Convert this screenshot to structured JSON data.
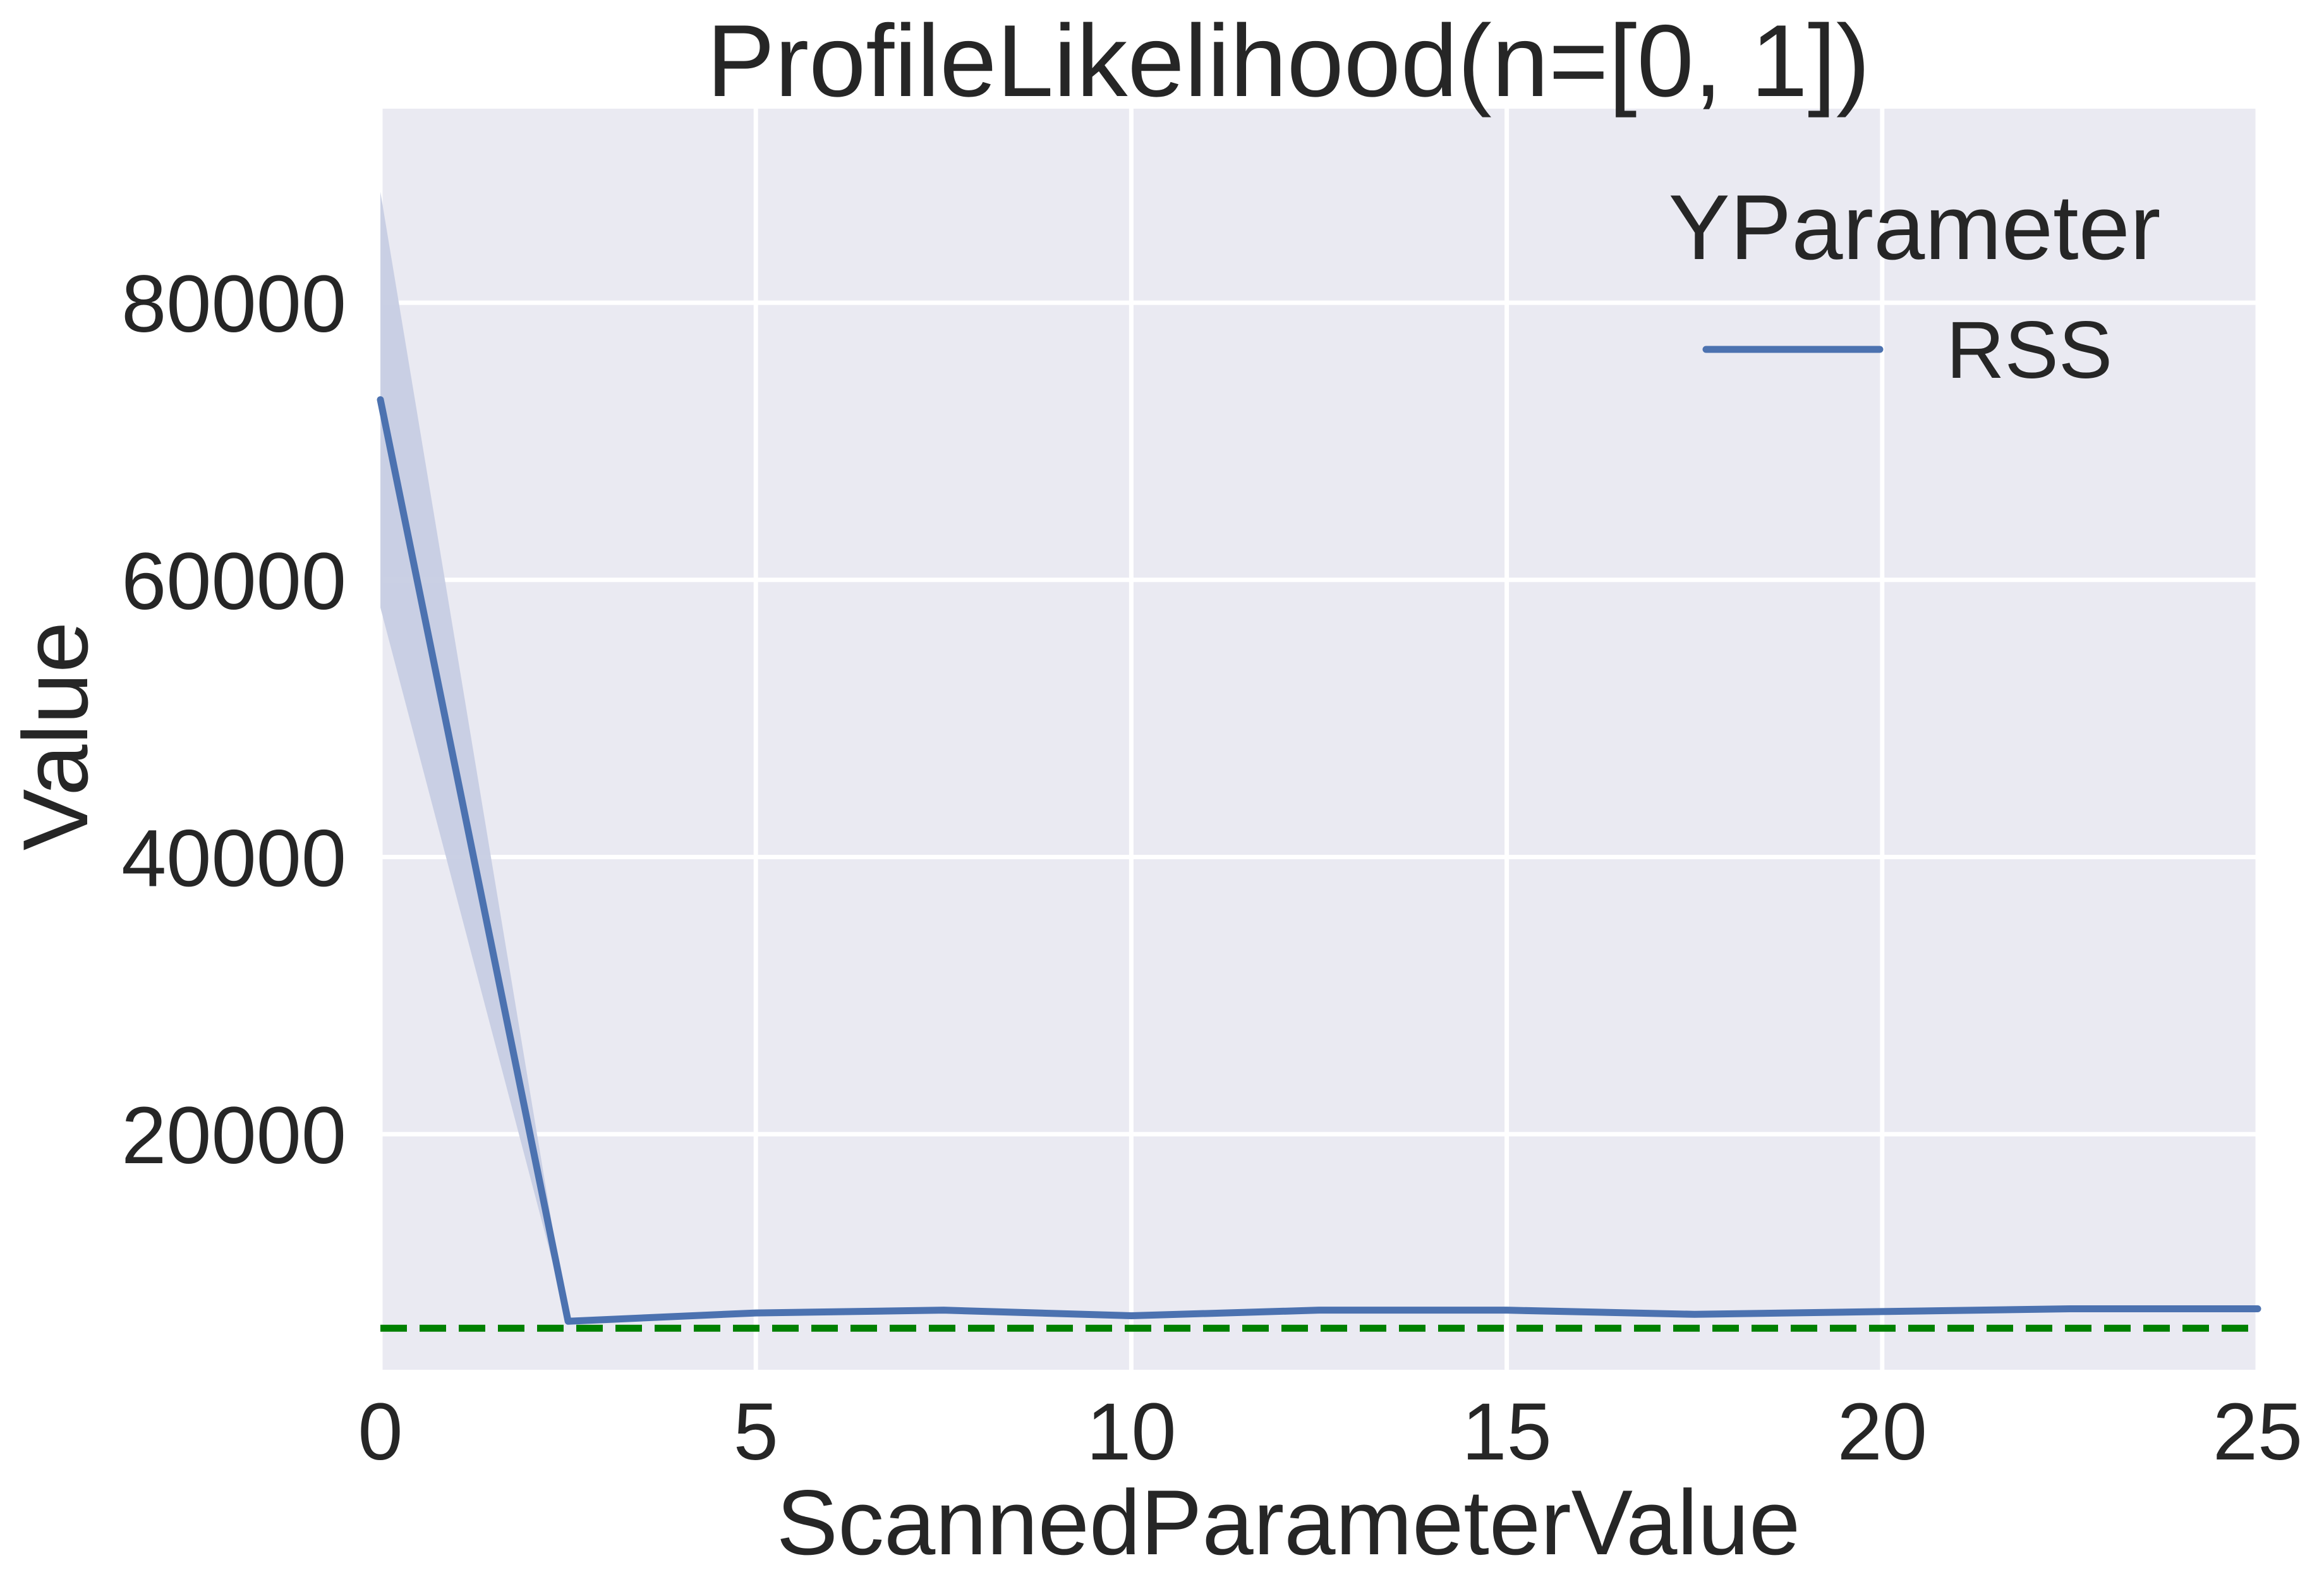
{
  "chart_data": {
    "type": "line",
    "title": "ProfileLikelihood(n=[0, 1])",
    "xlabel": "ScannedParameterValue",
    "ylabel": "Value",
    "xlim": [
      0,
      25
    ],
    "ylim": [
      3000,
      94000
    ],
    "x_ticks": [
      0,
      5,
      10,
      15,
      20,
      25
    ],
    "x_tick_labels": [
      "0",
      "5",
      "10",
      "15",
      "20",
      "25"
    ],
    "y_ticks": [
      20000,
      40000,
      60000,
      80000
    ],
    "y_tick_labels": [
      "20000",
      "40000",
      "60000",
      "80000"
    ],
    "grid": true,
    "legend": {
      "title": "YParameter",
      "position": "top-right",
      "entries": [
        {
          "label": "RSS",
          "color": "#4c72b0"
        }
      ]
    },
    "series": [
      {
        "name": "RSS",
        "color": "#4c72b0",
        "x": [
          0,
          2.5,
          5,
          7.5,
          10,
          12.5,
          15,
          17.5,
          20,
          22.5,
          25
        ],
        "y": [
          73000,
          6500,
          7100,
          7300,
          6900,
          7300,
          7300,
          7000,
          7200,
          7400,
          7400
        ],
        "ci_lower": [
          58000,
          6500,
          7100,
          7300,
          6900,
          7300,
          7300,
          7000,
          7200,
          7400,
          7400
        ],
        "ci_upper": [
          88000,
          6500,
          7100,
          7300,
          6900,
          7300,
          7300,
          7000,
          7200,
          7400,
          7400
        ]
      }
    ],
    "reference_line": {
      "y": 6000,
      "color": "#008000",
      "style": "dashed"
    },
    "colors": {
      "plot_background": "#eaeaf2",
      "grid": "#ffffff",
      "text": "#262626",
      "ci_fill": "#c7cee3"
    }
  }
}
